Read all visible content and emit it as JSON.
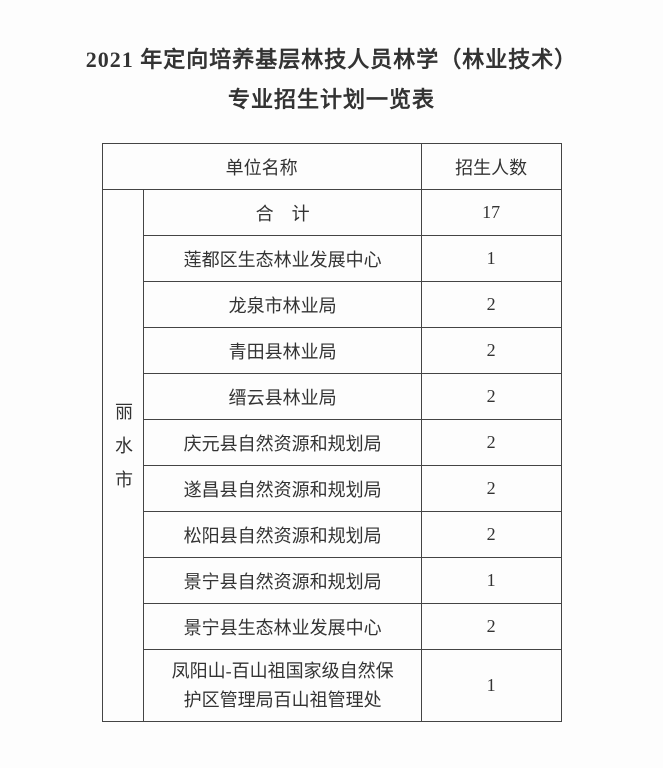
{
  "title_line1": "2021 年定向培养基层林技人员林学（林业技术）",
  "title_line2": "专业招生计划一览表",
  "header_unit": "单位名称",
  "header_count": "招生人数",
  "city": "丽水市",
  "total_label": "合　计",
  "total_count": "17",
  "rows": [
    {
      "unit": "莲都区生态林业发展中心",
      "count": "1"
    },
    {
      "unit": "龙泉市林业局",
      "count": "2"
    },
    {
      "unit": "青田县林业局",
      "count": "2"
    },
    {
      "unit": "缙云县林业局",
      "count": "2"
    },
    {
      "unit": "庆元县自然资源和规划局",
      "count": "2"
    },
    {
      "unit": "遂昌县自然资源和规划局",
      "count": "2"
    },
    {
      "unit": "松阳县自然资源和规划局",
      "count": "2"
    },
    {
      "unit": "景宁县自然资源和规划局",
      "count": "1"
    },
    {
      "unit": "景宁县生态林业发展中心",
      "count": "2"
    }
  ],
  "last_row_line1": "凤阳山-百山祖国家级自然保",
  "last_row_line2": "护区管理局百山祖管理处",
  "last_row_count": "1",
  "colors": {
    "page_bg": "#fdfdfd",
    "text": "#333333",
    "border": "#444444"
  }
}
